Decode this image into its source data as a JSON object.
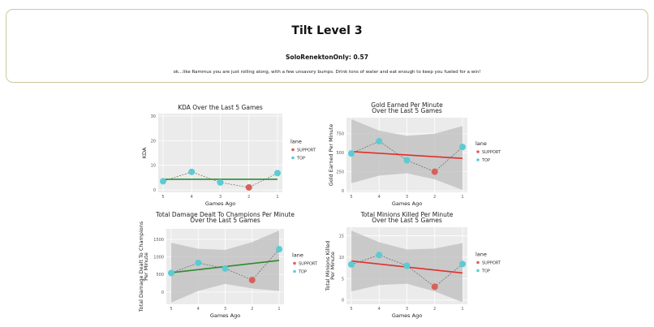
{
  "header": {
    "title": "Tilt Level 3",
    "score": "SoloRenektonOnly: 0.57",
    "message": "ok...like Rammus you are just rolling along, with a few unsavory bumps. Drink tons of water and eat enough to keep you fueled for a win!"
  },
  "colors": {
    "SUPPORT": "#d9605a",
    "TOP": "#5ccbd3"
  },
  "chart_data": [
    {
      "type": "scatter",
      "title": [
        "KDA Over the Last 5 Games"
      ],
      "xlabel": "Games Ago",
      "ylabel": [
        "KDA"
      ],
      "x": [
        5,
        4,
        3,
        2,
        1
      ],
      "y": [
        3.5,
        7.3,
        3.0,
        1.0,
        6.8
      ],
      "lane": [
        "TOP",
        "TOP",
        "TOP",
        "SUPPORT",
        "TOP"
      ],
      "ylim": [
        -1,
        31
      ],
      "yticks": [
        0,
        10,
        20,
        30
      ],
      "fit": {
        "color": "#2e8b2e",
        "y": [
          4.3,
          4.3
        ],
        "band": null
      },
      "legend": {
        "title": "lane",
        "entries": [
          "SUPPORT",
          "TOP"
        ]
      }
    },
    {
      "type": "scatter",
      "title": [
        "Gold Earned Per Minute",
        "Over the Last 5 Games"
      ],
      "xlabel": "Games Ago",
      "ylabel": [
        "Gold Earned Per Minute"
      ],
      "x": [
        5,
        4,
        3,
        2,
        1
      ],
      "y": [
        490,
        650,
        400,
        250,
        575
      ],
      "lane": [
        "TOP",
        "TOP",
        "TOP",
        "SUPPORT",
        "TOP"
      ],
      "ylim": [
        -20,
        960
      ],
      "yticks": [
        0,
        250,
        500,
        750
      ],
      "fit": {
        "color": "#e0302a",
        "y": [
          515,
          425
        ],
        "band": {
          "lower": [
            100,
            200,
            230,
            150,
            10
          ],
          "upper": [
            940,
            790,
            720,
            750,
            850
          ]
        }
      },
      "legend": {
        "title": "lane",
        "entries": [
          "SUPPORT",
          "TOP"
        ]
      }
    },
    {
      "type": "scatter",
      "title": [
        "Total Damage Dealt To Champions Per Minute",
        "Over the Last 5 Games"
      ],
      "xlabel": "Games Ago",
      "ylabel": [
        "Total Damage Dealt To Champions",
        "Per Minute"
      ],
      "x": [
        5,
        4,
        3,
        2,
        1
      ],
      "y": [
        540,
        830,
        670,
        340,
        1220
      ],
      "lane": [
        "TOP",
        "TOP",
        "TOP",
        "SUPPORT",
        "TOP"
      ],
      "ylim": [
        -350,
        1800
      ],
      "yticks": [
        0,
        500,
        1000,
        1500
      ],
      "fit": {
        "color": "#2e8b2e",
        "y": [
          550,
          900
        ],
        "band": {
          "lower": [
            -300,
            30,
            230,
            100,
            30
          ],
          "upper": [
            1400,
            1230,
            1200,
            1420,
            1750
          ]
        }
      },
      "legend": {
        "title": "lane",
        "entries": [
          "SUPPORT",
          "TOP"
        ]
      }
    },
    {
      "type": "scatter",
      "title": [
        "Total Minions Killed Per Minute",
        "Over the Last 5 Games"
      ],
      "xlabel": "Games Ago",
      "ylabel": [
        "Total Minions Killed",
        "Per Minute"
      ],
      "x": [
        5,
        4,
        3,
        2,
        1
      ],
      "y": [
        8.3,
        10.5,
        8.0,
        3.1,
        8.4
      ],
      "lane": [
        "TOP",
        "TOP",
        "TOP",
        "SUPPORT",
        "TOP"
      ],
      "ylim": [
        -1,
        17
      ],
      "yticks": [
        0,
        5,
        10,
        15
      ],
      "fit": {
        "color": "#e0302a",
        "y": [
          9.1,
          6.3
        ],
        "band": {
          "lower": [
            2,
            3.5,
            3.8,
            2,
            -0.5
          ],
          "upper": [
            16.2,
            13.5,
            11.8,
            12,
            13.3
          ]
        }
      },
      "legend": {
        "title": "lane",
        "entries": [
          "SUPPORT",
          "TOP"
        ]
      }
    }
  ]
}
